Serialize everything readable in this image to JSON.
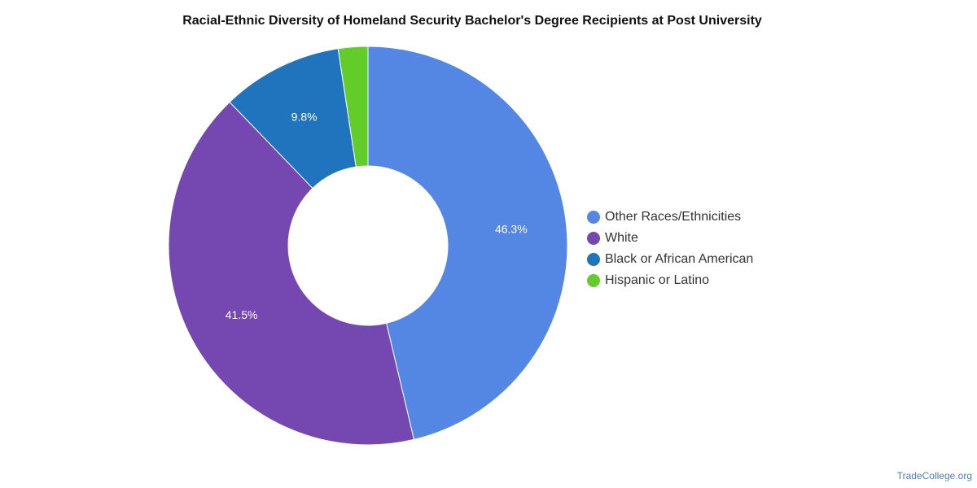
{
  "chart_data": {
    "type": "pie",
    "title": "Racial-Ethnic Diversity of Homeland Security Bachelor's Degree Recipients at Post University",
    "categories": [
      "Other Races/Ethnicities",
      "White",
      "Black or African American",
      "Hispanic or Latino"
    ],
    "values": [
      46.3,
      41.5,
      9.8,
      2.4
    ],
    "labels": [
      "46.3%",
      "41.5%",
      "9.8%",
      ""
    ],
    "colors": [
      "#5487e4",
      "#7547b1",
      "#1f74bd",
      "#62cc29"
    ],
    "legend_position": "right",
    "donut": true
  },
  "source": "TradeCollege.org"
}
